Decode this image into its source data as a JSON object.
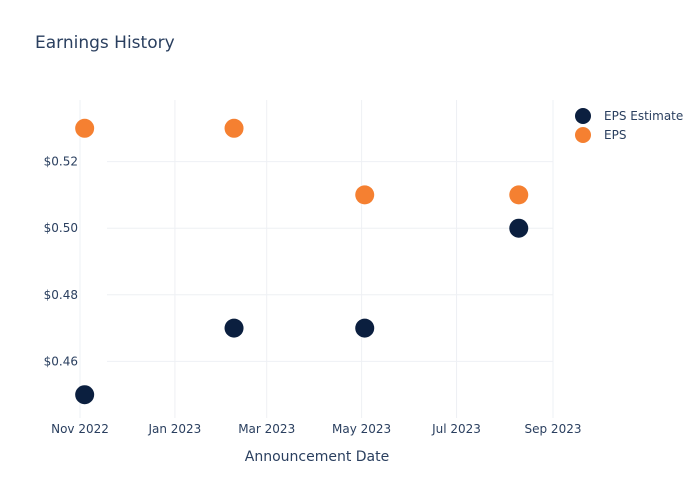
{
  "chart_data": {
    "type": "scatter",
    "title": "Earnings History",
    "xlabel": "Announcement Date",
    "ylabel": "",
    "x_ticks": [
      "Nov 2022",
      "Jan 2023",
      "Mar 2023",
      "May 2023",
      "Jul 2023",
      "Sep 2023"
    ],
    "y_ticks": [
      "$0.46",
      "$0.48",
      "$0.50",
      "$0.52"
    ],
    "ylim": [
      0.443,
      0.5385
    ],
    "xlim": [
      "2022-11-01",
      "2023-09-01"
    ],
    "x_axis_type": "date",
    "grid": true,
    "legend_position": "top-right",
    "series": [
      {
        "name": "EPS Estimate",
        "color": "#0b1f3f",
        "x": [
          "2022-11-04",
          "2023-02-08",
          "2023-05-03",
          "2023-08-10"
        ],
        "y": [
          0.45,
          0.47,
          0.47,
          0.5
        ]
      },
      {
        "name": "EPS",
        "color": "#f58031",
        "x": [
          "2022-11-04",
          "2023-02-08",
          "2023-05-03",
          "2023-08-10"
        ],
        "y": [
          0.53,
          0.53,
          0.51,
          0.51
        ]
      }
    ]
  }
}
